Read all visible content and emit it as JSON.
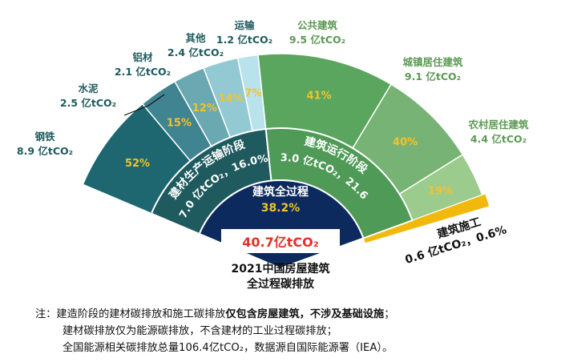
{
  "chart_data": {
    "type": "pie",
    "center_total": "40.7亿tCO₂",
    "center_title_line1": "2021中国房屋建筑",
    "center_title_line2": "全过程碳排放",
    "inner": {
      "label": "建筑全过程",
      "pct": "38.2%"
    },
    "stages": [
      {
        "label": "建材生产运输阶段",
        "value_text": "17.0 亿tCO₂，16.0%",
        "value": 17.0,
        "share": 16.0,
        "color": "#1e5a5e"
      },
      {
        "label": "建筑运行阶段",
        "value_text": "23.0 亿tCO₂，21.6%",
        "value": 23.0,
        "share": 21.6,
        "color": "#4e9a56"
      },
      {
        "label": "建筑施工",
        "value_text": "0.6 亿tCO₂，0.6%",
        "value": 0.6,
        "share": 0.6,
        "color": "#f2b90d"
      }
    ],
    "materials": [
      {
        "name": "钢铁",
        "value_text": "8.9 亿tCO₂",
        "value": 8.9,
        "pct": "52%",
        "color": "#1e6770"
      },
      {
        "name": "水泥",
        "value_text": "2.5 亿tCO₂",
        "value": 2.5,
        "pct": "15%",
        "color": "#3f8490"
      },
      {
        "name": "铝材",
        "value_text": "2.1 亿tCO₂",
        "value": 2.1,
        "pct": "12%",
        "color": "#6aa8b2"
      },
      {
        "name": "其他",
        "value_text": "2.4 亿tCO₂",
        "value": 2.4,
        "pct": "14%",
        "color": "#93c9d2"
      },
      {
        "name": "运输",
        "value_text": "1.2 亿tCO₂",
        "value": 1.2,
        "pct": "7%",
        "color": "#b8e3ec"
      }
    ],
    "operation": [
      {
        "name": "公共建筑",
        "value_text": "9.5 亿tCO₂",
        "value": 9.5,
        "pct": "41%",
        "color": "#5aa65e"
      },
      {
        "name": "城镇居住建筑",
        "value_text": "9.1 亿tCO₂",
        "value": 9.1,
        "pct": "40%",
        "color": "#77b374"
      },
      {
        "name": "农村居住建筑",
        "value_text": "4.4 亿tCO₂",
        "value": 4.4,
        "pct": "19%",
        "color": "#9ccb8e"
      }
    ],
    "colors": {
      "navy": "#0d2a5e",
      "highlight": "#e0322a",
      "pct_text": "#f4c22b",
      "materials_label": "#1e5a5e",
      "operation_label": "#5a9a52"
    }
  },
  "notes": {
    "line1_a": "注：建造阶段的建材碳排放和施工碳排放",
    "line1_b": "仅包含房屋建筑，不涉及基础设施",
    "line1_c": "；",
    "line2": "建材碳排放仅为能源碳排放，不含建材的工业过程碳排放；",
    "line3": "全国能源相关碳排放总量106.4亿tCO₂，数据源自国际能源署（IEA）。"
  }
}
